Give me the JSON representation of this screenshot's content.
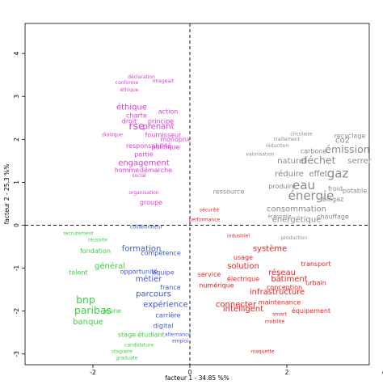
{
  "chart_data": {
    "type": "scatter",
    "title": "",
    "xlabel": "facteur 1 - 34.85 %%",
    "ylabel": "facteur 2 - 25.3 %%",
    "xlim": [
      -3.4,
      3.7
    ],
    "ylim": [
      -3.25,
      4.7
    ],
    "x_ticks": [
      -2,
      0,
      2,
      4
    ],
    "y_ticks": [
      -3,
      -2,
      -1,
      0,
      1,
      2,
      3,
      4
    ],
    "grid": false,
    "reference_lines": {
      "x": 0,
      "y": 0,
      "style": "dashed"
    },
    "legend": "none",
    "group_colors": {
      "magenta": "#e13ad6",
      "gray": "#8a8a8a",
      "red": "#ee2020",
      "green": "#3ecf42",
      "blue": "#3f56e0"
    },
    "series": [
      {
        "color_key": "magenta",
        "points": [
          {
            "label": "déclaration",
            "x": -1.0,
            "y": 3.45,
            "size": 1
          },
          {
            "label": "conforme",
            "x": -1.3,
            "y": 3.32,
            "size": 1
          },
          {
            "label": "imageait",
            "x": -0.55,
            "y": 3.35,
            "size": 1
          },
          {
            "label": "éthique",
            "x": -1.25,
            "y": 3.15,
            "size": 1
          },
          {
            "label": "éthique",
            "x": -1.2,
            "y": 2.75,
            "size": 3
          },
          {
            "label": "rse",
            "x": -1.1,
            "y": 2.3,
            "size": 4
          },
          {
            "label": "prenant",
            "x": -0.65,
            "y": 2.3,
            "size": 3
          },
          {
            "label": "principe",
            "x": -0.6,
            "y": 2.42,
            "size": 2
          },
          {
            "label": "charte",
            "x": -1.1,
            "y": 2.55,
            "size": 2
          },
          {
            "label": "droit",
            "x": -1.25,
            "y": 2.42,
            "size": 2
          },
          {
            "label": "action",
            "x": -0.45,
            "y": 2.65,
            "size": 2
          },
          {
            "label": "fournisseur",
            "x": -0.55,
            "y": 2.1,
            "size": 2
          },
          {
            "label": "monopnx",
            "x": -0.3,
            "y": 2.0,
            "size": 2
          },
          {
            "label": "responsabilité",
            "x": -0.85,
            "y": 1.85,
            "size": 2
          },
          {
            "label": "politique",
            "x": -0.5,
            "y": 1.82,
            "size": 2
          },
          {
            "label": "dialogue",
            "x": -1.6,
            "y": 2.1,
            "size": 1
          },
          {
            "label": "partie",
            "x": -0.95,
            "y": 1.65,
            "size": 2
          },
          {
            "label": "engagement",
            "x": -0.95,
            "y": 1.45,
            "size": 3
          },
          {
            "label": "homme",
            "x": -1.3,
            "y": 1.28,
            "size": 2
          },
          {
            "label": "démarche",
            "x": -0.7,
            "y": 1.28,
            "size": 2
          },
          {
            "label": "social",
            "x": -1.05,
            "y": 1.15,
            "size": 1
          },
          {
            "label": "groupe",
            "x": -0.8,
            "y": 0.53,
            "size": 2
          },
          {
            "label": "organisation",
            "x": -0.95,
            "y": 0.75,
            "size": 1
          }
        ]
      },
      {
        "color_key": "gray",
        "points": [
          {
            "label": "énergie",
            "x": 2.5,
            "y": 0.68,
            "size": 5
          },
          {
            "label": "eau",
            "x": 2.35,
            "y": 0.92,
            "size": 5
          },
          {
            "label": "gaz",
            "x": 3.05,
            "y": 1.2,
            "size": 5
          },
          {
            "label": "déchet",
            "x": 2.65,
            "y": 1.5,
            "size": 4
          },
          {
            "label": "émission",
            "x": 3.25,
            "y": 1.75,
            "size": 4
          },
          {
            "label": "naturel",
            "x": 2.1,
            "y": 1.5,
            "size": 3
          },
          {
            "label": "co2",
            "x": 3.15,
            "y": 1.98,
            "size": 3
          },
          {
            "label": "serrer",
            "x": 3.5,
            "y": 1.5,
            "size": 3
          },
          {
            "label": "réduire",
            "x": 2.05,
            "y": 1.2,
            "size": 3
          },
          {
            "label": "effet",
            "x": 2.65,
            "y": 1.2,
            "size": 3
          },
          {
            "label": "consommation",
            "x": 2.2,
            "y": 0.38,
            "size": 3
          },
          {
            "label": "énergétique",
            "x": 2.2,
            "y": 0.13,
            "size": 3
          },
          {
            "label": "carbone",
            "x": 2.55,
            "y": 1.72,
            "size": 2
          },
          {
            "label": "recyclage",
            "x": 3.3,
            "y": 2.08,
            "size": 2
          },
          {
            "label": "produire",
            "x": 1.9,
            "y": 0.9,
            "size": 2
          },
          {
            "label": "ressource",
            "x": 0.8,
            "y": 0.78,
            "size": 2
          },
          {
            "label": "froid",
            "x": 3.0,
            "y": 0.85,
            "size": 2
          },
          {
            "label": "potable",
            "x": 3.4,
            "y": 0.8,
            "size": 2
          },
          {
            "label": "biogaz",
            "x": 2.95,
            "y": 0.6,
            "size": 2
          },
          {
            "label": "chauffage",
            "x": 2.95,
            "y": 0.2,
            "size": 2
          },
          {
            "label": "traitement",
            "x": 2.0,
            "y": 2.0,
            "size": 1
          },
          {
            "label": "circulaire",
            "x": 2.3,
            "y": 2.12,
            "size": 1
          },
          {
            "label": "réduction",
            "x": 1.8,
            "y": 1.85,
            "size": 1
          },
          {
            "label": "valorisation",
            "x": 1.45,
            "y": 1.65,
            "size": 1
          },
          {
            "label": "économie",
            "x": 1.85,
            "y": 0.2,
            "size": 1
          },
          {
            "label": "production",
            "x": 2.15,
            "y": -0.3,
            "size": 1
          }
        ]
      },
      {
        "color_key": "red",
        "points": [
          {
            "label": "connecter",
            "x": 0.95,
            "y": -1.85,
            "size": 3
          },
          {
            "label": "solution",
            "x": 1.1,
            "y": -0.95,
            "size": 3
          },
          {
            "label": "réseau",
            "x": 1.9,
            "y": -1.1,
            "size": 3
          },
          {
            "label": "système",
            "x": 1.65,
            "y": -0.55,
            "size": 3
          },
          {
            "label": "bâtiment",
            "x": 2.05,
            "y": -1.25,
            "size": 3
          },
          {
            "label": "infrastructure",
            "x": 1.8,
            "y": -1.55,
            "size": 3
          },
          {
            "label": "intelligent",
            "x": 1.1,
            "y": -1.95,
            "size": 3
          },
          {
            "label": "électrique",
            "x": 1.1,
            "y": -1.25,
            "size": 2
          },
          {
            "label": "équipement",
            "x": 2.5,
            "y": -2.0,
            "size": 2
          },
          {
            "label": "maintenance",
            "x": 1.85,
            "y": -1.8,
            "size": 2
          },
          {
            "label": "conception",
            "x": 1.95,
            "y": -1.45,
            "size": 2
          },
          {
            "label": "urbain",
            "x": 2.6,
            "y": -1.35,
            "size": 2
          },
          {
            "label": "transport",
            "x": 2.6,
            "y": -0.9,
            "size": 2
          },
          {
            "label": "numérique",
            "x": 0.55,
            "y": -1.4,
            "size": 2
          },
          {
            "label": "usage",
            "x": 1.1,
            "y": -0.75,
            "size": 2
          },
          {
            "label": "service",
            "x": 0.4,
            "y": -1.15,
            "size": 2
          },
          {
            "label": "sécurité",
            "x": 0.4,
            "y": 0.35,
            "size": 1
          },
          {
            "label": "performance",
            "x": 0.3,
            "y": 0.12,
            "size": 1
          },
          {
            "label": "industriel",
            "x": 1.0,
            "y": -0.25,
            "size": 1
          },
          {
            "label": "mobilité",
            "x": 1.75,
            "y": -2.25,
            "size": 1
          },
          {
            "label": "smart",
            "x": 1.85,
            "y": -2.08,
            "size": 1
          },
          {
            "label": "maquette",
            "x": 1.5,
            "y": -2.95,
            "size": 1
          }
        ]
      },
      {
        "color_key": "green",
        "points": [
          {
            "label": "bnp",
            "x": -2.15,
            "y": -1.75,
            "size": 4
          },
          {
            "label": "paribas",
            "x": -2.0,
            "y": -2.0,
            "size": 4
          },
          {
            "label": "banque",
            "x": -2.1,
            "y": -2.25,
            "size": 3
          },
          {
            "label": "général",
            "x": -1.65,
            "y": -0.95,
            "size": 3
          },
          {
            "label": "talent",
            "x": -2.3,
            "y": -1.1,
            "size": 2
          },
          {
            "label": "stage",
            "x": -1.3,
            "y": -2.55,
            "size": 2
          },
          {
            "label": "étudiant",
            "x": -0.8,
            "y": -2.55,
            "size": 2
          },
          {
            "label": "fondation",
            "x": -1.95,
            "y": -0.6,
            "size": 2
          },
          {
            "label": "recrutement",
            "x": -2.3,
            "y": -0.2,
            "size": 1
          },
          {
            "label": "réussite",
            "x": -1.9,
            "y": -0.35,
            "size": 1
          },
          {
            "label": "jeune",
            "x": -1.6,
            "y": -2.0,
            "size": 2
          },
          {
            "label": "stagiaire",
            "x": -1.4,
            "y": -2.95,
            "size": 1
          },
          {
            "label": "graduate",
            "x": -1.3,
            "y": -3.1,
            "size": 1
          },
          {
            "label": "candidature",
            "x": -1.05,
            "y": -2.8,
            "size": 1
          }
        ]
      },
      {
        "color_key": "blue",
        "points": [
          {
            "label": "parcours",
            "x": -0.75,
            "y": -1.6,
            "size": 3
          },
          {
            "label": "formation",
            "x": -1.0,
            "y": -0.55,
            "size": 3
          },
          {
            "label": "métier",
            "x": -0.85,
            "y": -1.25,
            "size": 3
          },
          {
            "label": "expérience",
            "x": -0.5,
            "y": -1.85,
            "size": 3
          },
          {
            "label": "opportunité",
            "x": -1.05,
            "y": -1.08,
            "size": 2
          },
          {
            "label": "compétence",
            "x": -0.6,
            "y": -0.65,
            "size": 2
          },
          {
            "label": "équipe",
            "x": -0.55,
            "y": -1.1,
            "size": 2
          },
          {
            "label": "carrière",
            "x": -0.45,
            "y": -2.1,
            "size": 2
          },
          {
            "label": "france",
            "x": -0.4,
            "y": -1.45,
            "size": 2
          },
          {
            "label": "digital",
            "x": -0.55,
            "y": -2.35,
            "size": 2
          },
          {
            "label": "collaborateur",
            "x": -0.9,
            "y": -0.05,
            "size": 1
          },
          {
            "label": "emploi",
            "x": -0.2,
            "y": -2.7,
            "size": 1
          },
          {
            "label": "alternance",
            "x": -0.25,
            "y": -2.55,
            "size": 1
          }
        ]
      }
    ]
  }
}
